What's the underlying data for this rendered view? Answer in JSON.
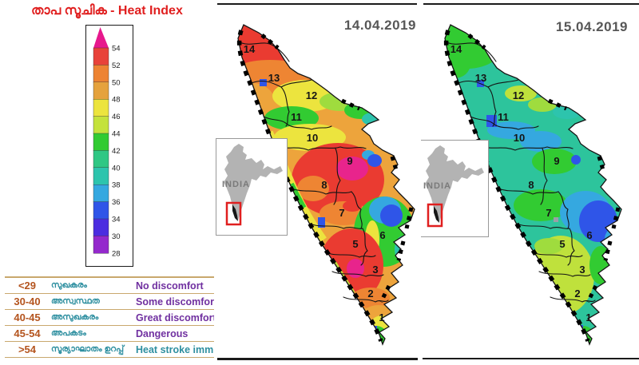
{
  "left_panel": {
    "title": "താപ സൂചിക  - Heat Index",
    "scale": {
      "tick_labels": [
        "54",
        "52",
        "50",
        "48",
        "46",
        "44",
        "42",
        "40",
        "38",
        "36",
        "34",
        "30",
        "28"
      ],
      "band_colors": [
        "#e8423a",
        "#ed8333",
        "#e5a23d",
        "#ece43e",
        "#c4e23c",
        "#32cb32",
        "#2fc784",
        "#2dc4ad",
        "#35a8e0",
        "#2f55e8",
        "#4b2de0",
        "#9429cc"
      ],
      "arrow_color": "#e7188d"
    },
    "legend_table": {
      "rows": [
        {
          "range": "<29",
          "malayalam": "സുഖകരം",
          "english": "No discomfort"
        },
        {
          "range": "30-40",
          "malayalam": "അസ്വസ്ഥത",
          "english": "Some discomfort"
        },
        {
          "range": "40-45",
          "malayalam": "അസുഖകരം",
          "english": "Great discomfort"
        },
        {
          "range": "45-54",
          "malayalam": "അപകടം",
          "english": "Dangerous"
        },
        {
          "range": ">54",
          "malayalam": "സൂര്യാഘാതം ഉറപ്പ്",
          "english": "Heat stroke imminent"
        }
      ]
    }
  },
  "maps": [
    {
      "date": "14.04.2019",
      "inset_label": "INDIA"
    },
    {
      "date": "15.04.2019",
      "inset_label": "INDIA"
    }
  ],
  "district_numbers": [
    "1",
    "2",
    "3",
    "5",
    "6",
    "7",
    "8",
    "9",
    "10",
    "11",
    "12",
    "13",
    "14"
  ],
  "palette": {
    "title_red": "#e01f1f",
    "date_gray": "#575757",
    "range_brown": "#b4541e",
    "malayalam_teal": "#2e8fa0",
    "english_purple": "#7030a0",
    "border_tan": "#c9a86d",
    "heat_magenta": "#e7188d",
    "heat_red": "#ea3b31",
    "heat_orange": "#ee8533",
    "heat_amber": "#eda43c",
    "heat_yellow": "#ece43e",
    "heat_lime": "#bfe13c",
    "heat_green": "#32cb32",
    "heat_teal": "#2dc4ad",
    "heat_cyanblue": "#35a8e0",
    "heat_blue": "#2f55e8",
    "heat_purple": "#9429cc"
  }
}
